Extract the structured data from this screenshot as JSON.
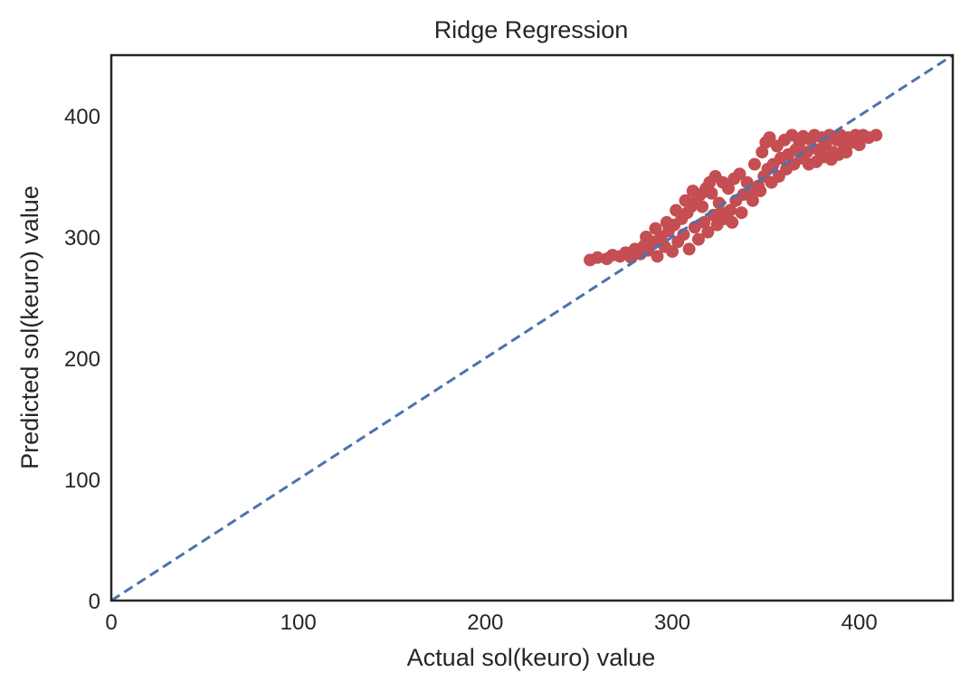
{
  "chart_data": {
    "type": "scatter",
    "title": "Ridge Regression",
    "xlabel": "Actual sol(keuro) value",
    "ylabel": "Predicted sol(keuro) value",
    "xlim": [
      0,
      450
    ],
    "ylim": [
      0,
      450
    ],
    "xticks": [
      0,
      100,
      200,
      300,
      400
    ],
    "yticks": [
      0,
      100,
      200,
      300,
      400
    ],
    "grid": false,
    "series": [
      {
        "kind": "scatter",
        "color": "#c44e52",
        "points": [
          [
            256,
            281
          ],
          [
            260,
            283
          ],
          [
            265,
            282
          ],
          [
            268,
            285
          ],
          [
            272,
            284
          ],
          [
            275,
            287
          ],
          [
            278,
            283
          ],
          [
            280,
            290
          ],
          [
            283,
            286
          ],
          [
            285,
            293
          ],
          [
            287,
            289
          ],
          [
            290,
            296
          ],
          [
            292,
            284
          ],
          [
            294,
            300
          ],
          [
            296,
            292
          ],
          [
            298,
            305
          ],
          [
            300,
            288
          ],
          [
            301,
            310
          ],
          [
            303,
            296
          ],
          [
            305,
            315
          ],
          [
            306,
            302
          ],
          [
            308,
            320
          ],
          [
            309,
            290
          ],
          [
            310,
            325
          ],
          [
            312,
            308
          ],
          [
            313,
            330
          ],
          [
            314,
            298
          ],
          [
            315,
            335
          ],
          [
            317,
            312
          ],
          [
            318,
            340
          ],
          [
            319,
            304
          ],
          [
            320,
            345
          ],
          [
            322,
            318
          ],
          [
            323,
            350
          ],
          [
            324,
            310
          ],
          [
            325,
            328
          ],
          [
            327,
            345
          ],
          [
            328,
            315
          ],
          [
            330,
            340
          ],
          [
            331,
            322
          ],
          [
            333,
            348
          ],
          [
            334,
            330
          ],
          [
            336,
            352
          ],
          [
            338,
            335
          ],
          [
            340,
            345
          ],
          [
            342,
            338
          ],
          [
            344,
            360
          ],
          [
            346,
            342
          ],
          [
            348,
            370
          ],
          [
            349,
            350
          ],
          [
            350,
            378
          ],
          [
            351,
            356
          ],
          [
            352,
            382
          ],
          [
            354,
            360
          ],
          [
            356,
            375
          ],
          [
            358,
            365
          ],
          [
            360,
            380
          ],
          [
            362,
            368
          ],
          [
            364,
            384
          ],
          [
            366,
            372
          ],
          [
            368,
            378
          ],
          [
            370,
            383
          ],
          [
            372,
            370
          ],
          [
            374,
            380
          ],
          [
            376,
            384
          ],
          [
            378,
            372
          ],
          [
            380,
            382
          ],
          [
            382,
            376
          ],
          [
            384,
            384
          ],
          [
            386,
            370
          ],
          [
            388,
            380
          ],
          [
            390,
            384
          ],
          [
            392,
            374
          ],
          [
            394,
            382
          ],
          [
            396,
            378
          ],
          [
            398,
            384
          ],
          [
            400,
            376
          ],
          [
            402,
            384
          ],
          [
            405,
            382
          ],
          [
            409,
            384
          ],
          [
            286,
            300
          ],
          [
            291,
            307
          ],
          [
            297,
            312
          ],
          [
            302,
            322
          ],
          [
            307,
            330
          ],
          [
            311,
            338
          ],
          [
            316,
            325
          ],
          [
            321,
            336
          ],
          [
            326,
            320
          ],
          [
            332,
            312
          ],
          [
            337,
            320
          ],
          [
            343,
            330
          ],
          [
            347,
            338
          ],
          [
            353,
            345
          ],
          [
            357,
            350
          ],
          [
            361,
            356
          ],
          [
            365,
            360
          ],
          [
            369,
            365
          ],
          [
            373,
            360
          ],
          [
            377,
            362
          ],
          [
            381,
            366
          ],
          [
            385,
            364
          ],
          [
            389,
            368
          ],
          [
            393,
            370
          ]
        ]
      },
      {
        "kind": "line",
        "style": "dashed",
        "color": "#4c72b0",
        "x": [
          0,
          450
        ],
        "y": [
          0,
          450
        ]
      }
    ]
  }
}
